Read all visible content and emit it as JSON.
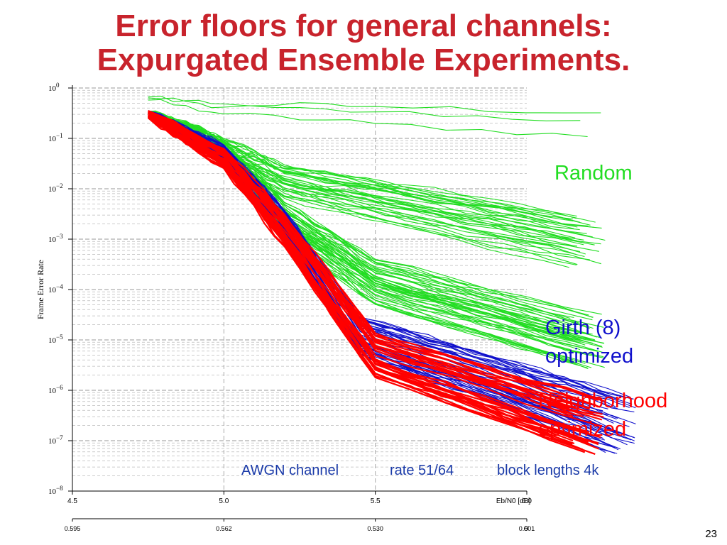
{
  "slide": {
    "title_line1": "Error floors for general channels:",
    "title_line2": "Expurgated Ensemble Experiments.",
    "page_number": "23"
  },
  "annotations": {
    "channel": "AWGN channel",
    "rate": "rate 51/64",
    "block_lengths": "block lengths 4k"
  },
  "colors": {
    "random": "#22dd22",
    "girth": "#1010cc",
    "neighborhood": "#ff0000",
    "title": "#c8232c",
    "annotation": "#1a3aa8"
  },
  "chart_data": {
    "type": "line",
    "ylabel": "Frame Error Rate",
    "xlabel": "Eb/N0 [dB]",
    "y_scale": "log",
    "ylim": [
      1e-08,
      1
    ],
    "xlim": [
      4.5,
      6.0
    ],
    "y_ticks": [
      {
        "exp": "0"
      },
      {
        "exp": "-1"
      },
      {
        "exp": "-2"
      },
      {
        "exp": "-3"
      },
      {
        "exp": "-4"
      },
      {
        "exp": "-5"
      },
      {
        "exp": "-6"
      },
      {
        "exp": "-7"
      },
      {
        "exp": "-8"
      }
    ],
    "x_ticks": [
      "4.5",
      "5.0",
      "5.5",
      "6.0"
    ],
    "x_tick_values": [
      4.5,
      5.0,
      5.5,
      6.0
    ],
    "secondary_axis": {
      "label": "σ",
      "ticks": [
        "0.595",
        "0.562",
        "0.530",
        "0.501"
      ]
    },
    "series": [
      {
        "name": "Random",
        "groups": [
          {
            "count": 3,
            "x": [
              4.75,
              5.0,
              5.5,
              6.2
            ],
            "y": [
              0.6,
              0.35,
              0.25,
              0.15
            ]
          },
          {
            "count": 35,
            "x": [
              4.75,
              4.9,
              5.0,
              5.2,
              5.6,
              6.2
            ],
            "y": [
              0.3,
              0.13,
              0.06,
              0.015,
              0.005,
              0.001
            ]
          },
          {
            "count": 50,
            "x": [
              4.75,
              4.9,
              5.0,
              5.2,
              5.5,
              6.2
            ],
            "y": [
              0.3,
              0.13,
              0.05,
              0.0025,
              0.00015,
              1e-05
            ]
          }
        ]
      },
      {
        "name": "Girth (8) optimized",
        "groups": [
          {
            "count": 45,
            "x": [
              4.75,
              5.0,
              5.2,
              5.45,
              5.9,
              6.3
            ],
            "y": [
              0.3,
              0.05,
              0.002,
              1.2e-05,
              1.5e-06,
              2e-07
            ]
          }
        ]
      },
      {
        "name": "Neighborhood optimized",
        "groups": [
          {
            "count": 35,
            "x": [
              4.75,
              5.0,
              5.2,
              5.5,
              6.2
            ],
            "y": [
              0.3,
              0.04,
              0.0015,
              5e-06,
              2e-07
            ]
          }
        ]
      }
    ]
  }
}
